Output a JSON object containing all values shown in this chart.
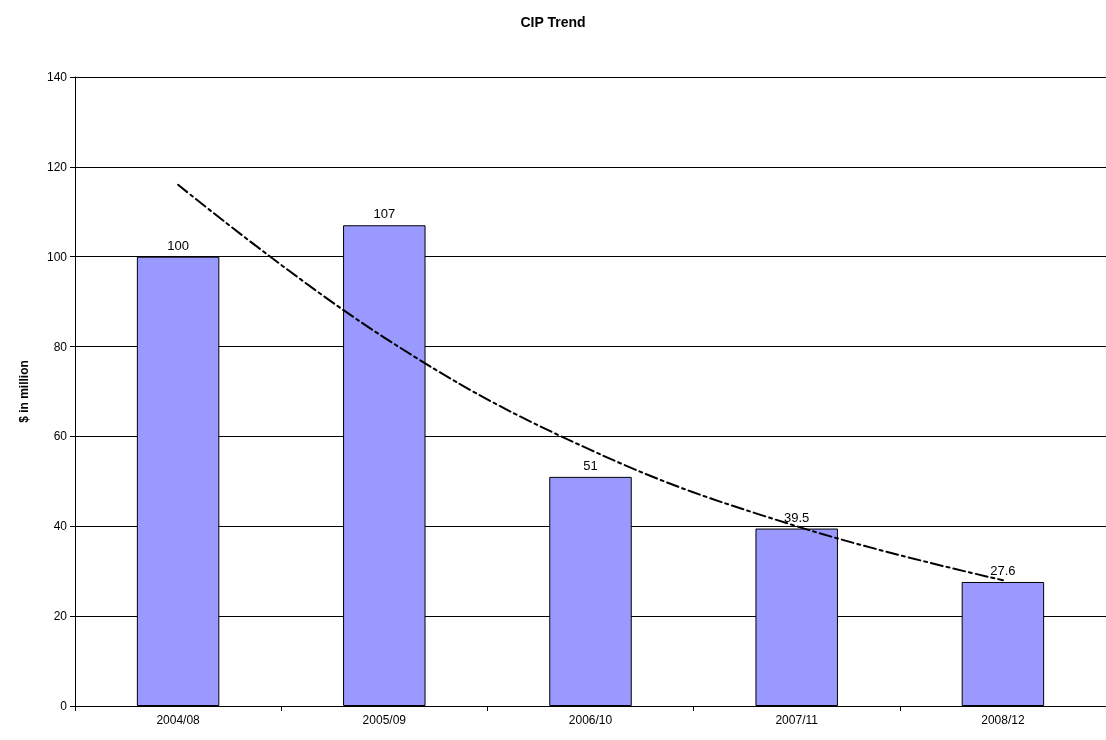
{
  "chart_data": {
    "type": "bar",
    "title": "CIP Trend",
    "ylabel": "$ in million",
    "categories": [
      "2004/08",
      "2005/09",
      "2006/10",
      "2007/11",
      "2008/12"
    ],
    "series": [
      {
        "color": "#9999ff",
        "values": [
          100,
          107,
          51,
          39.5,
          27.6
        ],
        "value_labels": [
          "100",
          "107",
          "51",
          "39.5",
          "27.6"
        ]
      },
      {
        "type": "line",
        "color": "#000000",
        "x": [
          "2004/08",
          "2005/09",
          "2006/10",
          "2007/11",
          "2008/12"
        ],
        "values": [
          116,
          82,
          57,
          40,
          28
        ],
        "line_style": "dashed",
        "marker": "none"
      }
    ],
    "ylim": [
      0,
      140
    ],
    "yticks": [
      0,
      20,
      40,
      60,
      80,
      100,
      120,
      140
    ],
    "grid": "y"
  }
}
